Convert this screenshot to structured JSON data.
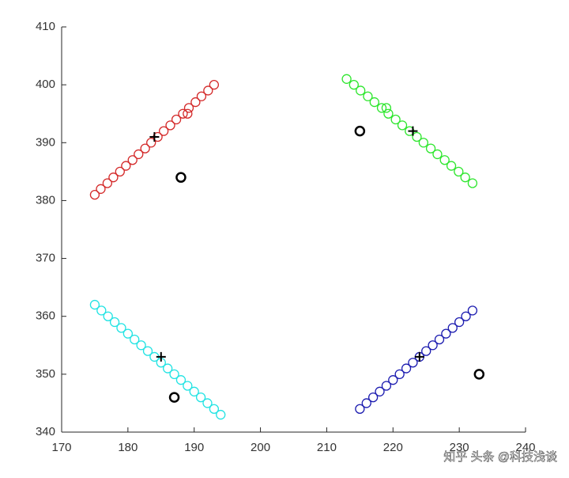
{
  "chart_data": {
    "type": "scatter",
    "xlim": [
      170,
      240
    ],
    "xticks": [
      170,
      180,
      190,
      200,
      210,
      220,
      230,
      240
    ],
    "ylim": [
      340,
      410
    ],
    "yticks": [
      340,
      350,
      360,
      370,
      380,
      390,
      400,
      410
    ],
    "series": [
      {
        "color": "#d42a2a",
        "marker": "circle",
        "x": [
          175,
          175.9,
          176.9,
          177.8,
          178.8,
          179.7,
          180.7,
          181.6,
          182.6,
          183.5,
          184.5,
          185.4,
          186.4,
          187.3,
          188.3,
          189.2,
          190.2,
          191.1,
          192.1,
          193,
          189
        ],
        "values": [
          381,
          382,
          383,
          384,
          385,
          386,
          387,
          388,
          389,
          390,
          391,
          392,
          393,
          394,
          395,
          396,
          397,
          398,
          399,
          400,
          395
        ]
      },
      {
        "color": "#2ee62e",
        "marker": "circle",
        "x": [
          213,
          214.1,
          215.1,
          216.2,
          217.2,
          218.3,
          219.3,
          220.4,
          221.4,
          222.5,
          223.6,
          224.6,
          225.7,
          226.7,
          227.8,
          228.8,
          229.9,
          230.9,
          232,
          219
        ],
        "values": [
          401,
          400,
          399,
          398,
          397,
          396,
          395,
          394,
          393,
          392,
          391,
          390,
          389,
          388,
          387,
          386,
          385,
          384,
          383,
          396
        ]
      },
      {
        "color": "#22e3e3",
        "marker": "circle",
        "x": [
          175,
          176,
          177,
          178,
          179,
          180,
          181,
          182,
          183,
          184,
          185,
          186,
          187,
          188,
          189,
          190,
          191,
          192,
          193,
          194
        ],
        "values": [
          362,
          361,
          360,
          359,
          358,
          357,
          356,
          355,
          354,
          353,
          352,
          351,
          350,
          349,
          348,
          347,
          346,
          345,
          344,
          343
        ]
      },
      {
        "color": "#1c1cb0",
        "marker": "circle",
        "x": [
          215,
          216,
          217,
          218,
          219,
          220,
          221,
          222,
          223,
          224,
          225,
          226,
          227,
          228,
          229,
          230,
          231,
          232
        ],
        "values": [
          344,
          345,
          346,
          347,
          348,
          349,
          350,
          351,
          352,
          353,
          354,
          355,
          356,
          357,
          358,
          359,
          360,
          361
        ]
      },
      {
        "color": "#000000",
        "marker": "circle",
        "bold": true,
        "x": [
          188,
          215,
          187,
          233
        ],
        "values": [
          384,
          392,
          346,
          350
        ]
      },
      {
        "color": "#000000",
        "marker": "plus",
        "x": [
          184,
          223,
          185,
          224
        ],
        "values": [
          391,
          392,
          353,
          353
        ]
      }
    ],
    "watermark": "知乎 头条 @科技浅谈"
  }
}
